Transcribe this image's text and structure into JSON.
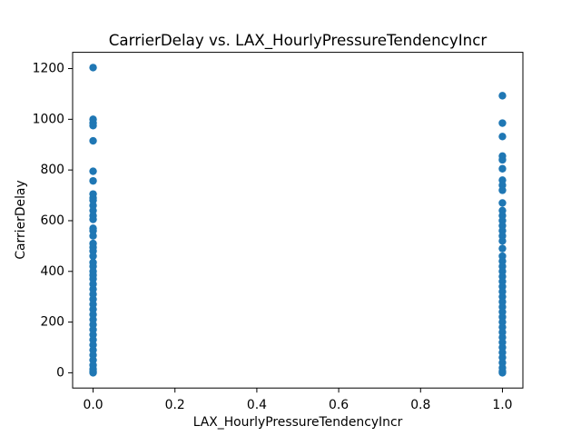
{
  "chart_data": {
    "type": "scatter",
    "title": "CarrierDelay vs. LAX_HourlyPressureTendencyIncr",
    "x_label": "LAX_HourlyPressureTendencyIncr",
    "y_label": "CarrierDelay",
    "color": "#1f77b4",
    "x": [
      0,
      0,
      0,
      0,
      0,
      0,
      0,
      0,
      0,
      0,
      0,
      0,
      0,
      0,
      0,
      0,
      0,
      0,
      0,
      0,
      0,
      0,
      0,
      0,
      0,
      0,
      0,
      0,
      0,
      0,
      0,
      0,
      0,
      0,
      0,
      0,
      0,
      0,
      0,
      0,
      0,
      0,
      0,
      0,
      0,
      0,
      1,
      1,
      1,
      1,
      1,
      1,
      1,
      1,
      1,
      1,
      1,
      1,
      1,
      1,
      1,
      1,
      1,
      1,
      1,
      1,
      1,
      1,
      1,
      1,
      1,
      1,
      1,
      1,
      1,
      1,
      1,
      1,
      1,
      1,
      1,
      1,
      1,
      1,
      1,
      1,
      1,
      1,
      1
    ],
    "values": [
      1204,
      1000,
      985,
      975,
      915,
      795,
      757,
      705,
      690,
      680,
      660,
      640,
      620,
      605,
      570,
      560,
      540,
      510,
      495,
      480,
      460,
      435,
      420,
      400,
      385,
      370,
      350,
      330,
      310,
      290,
      270,
      250,
      230,
      210,
      190,
      170,
      150,
      130,
      110,
      90,
      70,
      50,
      30,
      15,
      5,
      0,
      1093,
      985,
      932,
      855,
      840,
      805,
      760,
      740,
      720,
      670,
      640,
      620,
      600,
      580,
      560,
      540,
      520,
      490,
      460,
      440,
      420,
      400,
      380,
      360,
      340,
      320,
      300,
      280,
      260,
      240,
      220,
      200,
      180,
      160,
      140,
      120,
      100,
      80,
      60,
      40,
      20,
      5,
      0
    ],
    "xlim": [
      -0.05,
      1.05
    ],
    "ylim": [
      -60.2,
      1264.2
    ],
    "xticks": [
      {
        "value": 0,
        "label": "0.0"
      },
      {
        "value": 0.2,
        "label": "0.2"
      },
      {
        "value": 0.4,
        "label": "0.4"
      },
      {
        "value": 0.6,
        "label": "0.6"
      },
      {
        "value": 0.8,
        "label": "0.8"
      },
      {
        "value": 1,
        "label": "1.0"
      }
    ],
    "yticks": [
      0,
      200,
      400,
      600,
      800,
      1000,
      1200
    ]
  }
}
